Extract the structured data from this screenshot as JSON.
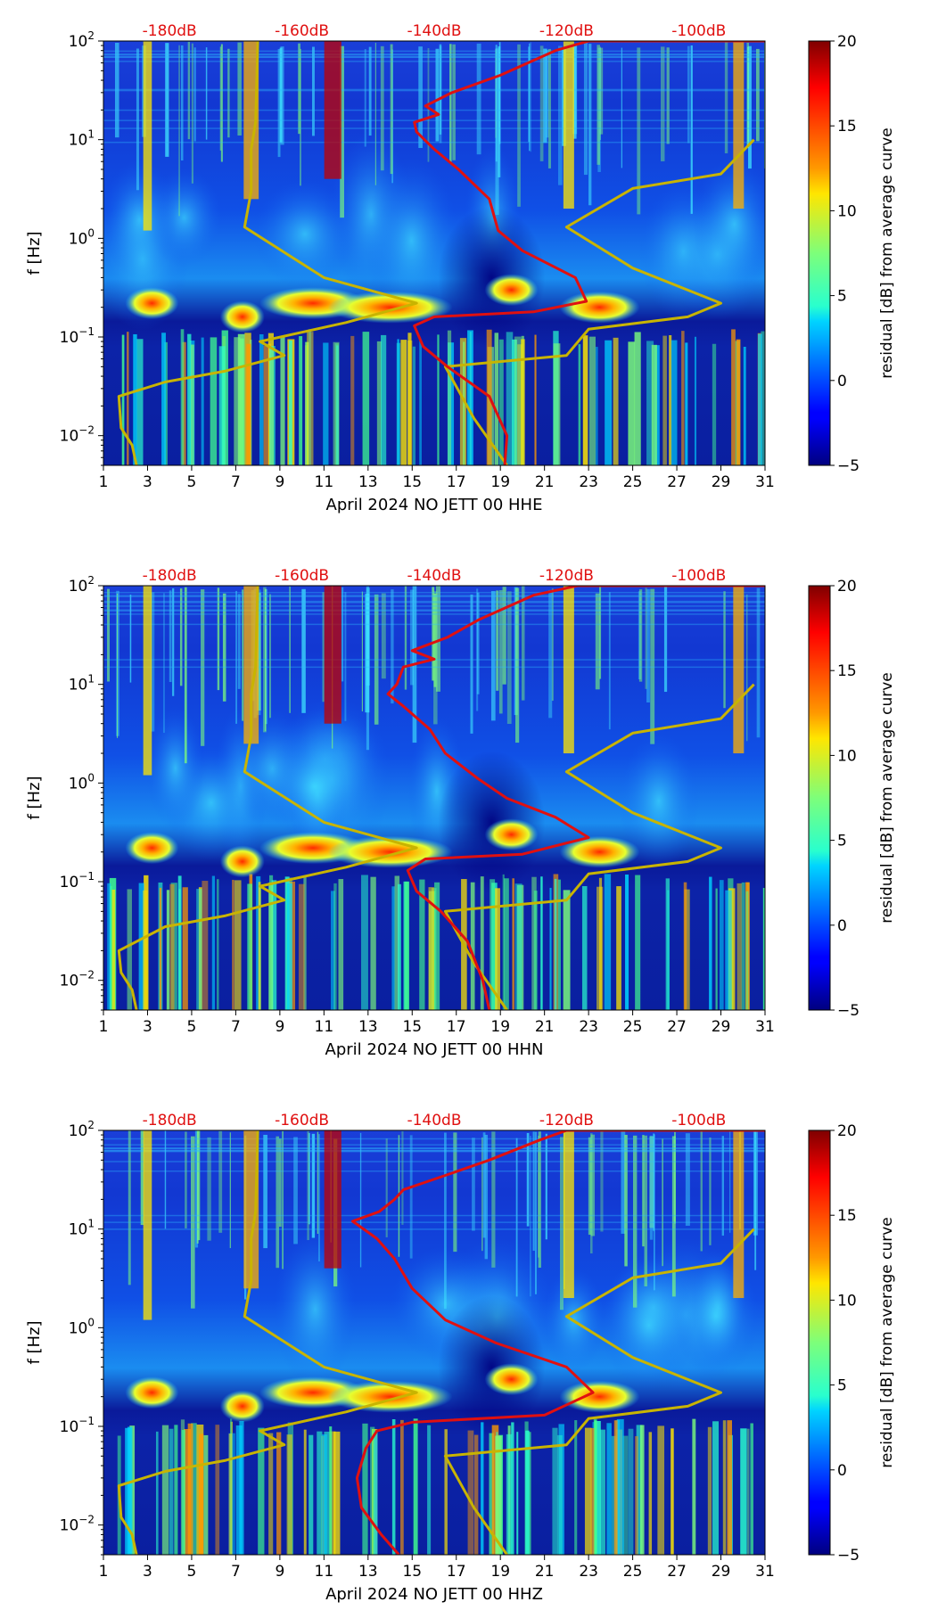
{
  "chart_data": [
    {
      "type": "heatmap",
      "title": "",
      "xlabel": "April 2024 NO JETT 00 HHE",
      "ylabel": "f [Hz]",
      "x_ticks": [
        "1",
        "3",
        "5",
        "7",
        "9",
        "11",
        "13",
        "15",
        "17",
        "19",
        "21",
        "23",
        "25",
        "27",
        "29",
        "31"
      ],
      "xlim": [
        1,
        31
      ],
      "y_ticks": [
        {
          "base": "10",
          "exp": "2"
        },
        {
          "base": "10",
          "exp": "1"
        },
        {
          "base": "10",
          "exp": "0"
        },
        {
          "base": "10",
          "exp": "−1"
        },
        {
          "base": "10",
          "exp": "−2"
        }
      ],
      "ylim_hz": [
        0.005,
        100
      ],
      "top_axis_labels": [
        "-180dB",
        "-160dB",
        "-140dB",
        "-120dB",
        "-100dB"
      ],
      "colorbar": {
        "label": "residual [dB] from average curve",
        "ticks": [
          "20",
          "15",
          "10",
          "5",
          "0",
          "−5"
        ],
        "range": [
          -5,
          20
        ]
      },
      "gold_curves": [
        [
          [
            2.5,
            0.005
          ],
          [
            2.3,
            0.008
          ],
          [
            1.8,
            0.012
          ],
          [
            1.7,
            0.025
          ],
          [
            3.8,
            0.035
          ],
          [
            6.5,
            0.045
          ],
          [
            9.2,
            0.065
          ],
          [
            8.1,
            0.09
          ],
          [
            12,
            0.14
          ],
          [
            15.2,
            0.22
          ],
          [
            11,
            0.4
          ],
          [
            7.4,
            1.3
          ],
          [
            7.7,
            3
          ],
          [
            7.7,
            8
          ],
          [
            7.9,
            15
          ],
          [
            8.0,
            100
          ]
        ],
        [
          [
            19.3,
            0.005
          ],
          [
            17.8,
            0.015
          ],
          [
            16.5,
            0.05
          ],
          [
            22,
            0.065
          ],
          [
            23,
            0.12
          ],
          [
            27.5,
            0.16
          ],
          [
            29,
            0.22
          ],
          [
            25,
            0.5
          ],
          [
            22,
            1.3
          ],
          [
            25,
            3.2
          ],
          [
            29,
            4.5
          ],
          [
            30.5,
            10
          ]
        ]
      ],
      "red_curve": [
        [
          19.2,
          0.005
        ],
        [
          19.3,
          0.01
        ],
        [
          18.5,
          0.025
        ],
        [
          16.6,
          0.05
        ],
        [
          15.5,
          0.08
        ],
        [
          15.1,
          0.13
        ],
        [
          16,
          0.16
        ],
        [
          20.5,
          0.18
        ],
        [
          22.9,
          0.23
        ],
        [
          22.4,
          0.4
        ],
        [
          20,
          0.75
        ],
        [
          18.9,
          1.2
        ],
        [
          18.5,
          2.5
        ],
        [
          17.1,
          5
        ],
        [
          16,
          8
        ],
        [
          15.2,
          12
        ],
        [
          15.1,
          15
        ],
        [
          16.2,
          18
        ],
        [
          15.6,
          22
        ],
        [
          16.8,
          30
        ],
        [
          19,
          45
        ],
        [
          21.5,
          80
        ],
        [
          23,
          100
        ],
        [
          31,
          100
        ]
      ]
    },
    {
      "type": "heatmap",
      "title": "",
      "xlabel": "April 2024 NO JETT 00 HHN",
      "ylabel": "f [Hz]",
      "x_ticks": [
        "1",
        "3",
        "5",
        "7",
        "9",
        "11",
        "13",
        "15",
        "17",
        "19",
        "21",
        "23",
        "25",
        "27",
        "29",
        "31"
      ],
      "xlim": [
        1,
        31
      ],
      "y_ticks": [
        {
          "base": "10",
          "exp": "2"
        },
        {
          "base": "10",
          "exp": "1"
        },
        {
          "base": "10",
          "exp": "0"
        },
        {
          "base": "10",
          "exp": "−1"
        },
        {
          "base": "10",
          "exp": "−2"
        }
      ],
      "ylim_hz": [
        0.005,
        100
      ],
      "top_axis_labels": [
        "-180dB",
        "-160dB",
        "-140dB",
        "-120dB",
        "-100dB"
      ],
      "colorbar": {
        "label": "residual [dB] from average curve",
        "ticks": [
          "20",
          "15",
          "10",
          "5",
          "0",
          "−5"
        ],
        "range": [
          -5,
          20
        ]
      },
      "gold_curves": [
        [
          [
            2.5,
            0.005
          ],
          [
            2.3,
            0.008
          ],
          [
            1.8,
            0.012
          ],
          [
            1.7,
            0.02
          ],
          [
            3.8,
            0.035
          ],
          [
            6.5,
            0.045
          ],
          [
            9.2,
            0.065
          ],
          [
            8.1,
            0.09
          ],
          [
            12,
            0.14
          ],
          [
            15.2,
            0.22
          ],
          [
            11,
            0.4
          ],
          [
            7.4,
            1.3
          ],
          [
            7.7,
            3
          ],
          [
            7.7,
            8
          ],
          [
            7.9,
            15
          ],
          [
            8.0,
            100
          ]
        ],
        [
          [
            19.3,
            0.005
          ],
          [
            17.8,
            0.015
          ],
          [
            16.5,
            0.05
          ],
          [
            22,
            0.065
          ],
          [
            23,
            0.12
          ],
          [
            27.5,
            0.16
          ],
          [
            29,
            0.22
          ],
          [
            25,
            0.5
          ],
          [
            22,
            1.3
          ],
          [
            25,
            3.2
          ],
          [
            29,
            4.5
          ],
          [
            30.5,
            10
          ]
        ]
      ],
      "red_curve": [
        [
          18.5,
          0.005
        ],
        [
          18.2,
          0.01
        ],
        [
          17.5,
          0.025
        ],
        [
          16.3,
          0.05
        ],
        [
          15.2,
          0.08
        ],
        [
          14.8,
          0.13
        ],
        [
          15.6,
          0.17
        ],
        [
          20,
          0.19
        ],
        [
          23,
          0.28
        ],
        [
          21.5,
          0.45
        ],
        [
          19.3,
          0.7
        ],
        [
          18,
          1.1
        ],
        [
          16.5,
          2
        ],
        [
          15.8,
          3.5
        ],
        [
          14.6,
          6
        ],
        [
          13.9,
          8
        ],
        [
          14.3,
          10
        ],
        [
          14.6,
          15
        ],
        [
          16,
          18
        ],
        [
          15,
          22
        ],
        [
          16.6,
          30
        ],
        [
          18,
          45
        ],
        [
          20.5,
          80
        ],
        [
          22.5,
          100
        ],
        [
          31,
          100
        ]
      ]
    },
    {
      "type": "heatmap",
      "title": "",
      "xlabel": "April 2024 NO JETT 00 HHZ",
      "ylabel": "f [Hz]",
      "x_ticks": [
        "1",
        "3",
        "5",
        "7",
        "9",
        "11",
        "13",
        "15",
        "17",
        "19",
        "21",
        "23",
        "25",
        "27",
        "29",
        "31"
      ],
      "xlim": [
        1,
        31
      ],
      "y_ticks": [
        {
          "base": "10",
          "exp": "2"
        },
        {
          "base": "10",
          "exp": "1"
        },
        {
          "base": "10",
          "exp": "0"
        },
        {
          "base": "10",
          "exp": "−1"
        },
        {
          "base": "10",
          "exp": "−2"
        }
      ],
      "ylim_hz": [
        0.005,
        100
      ],
      "top_axis_labels": [
        "-180dB",
        "-160dB",
        "-140dB",
        "-120dB",
        "-100dB"
      ],
      "colorbar": {
        "label": "residual [dB] from average curve",
        "ticks": [
          "20",
          "15",
          "10",
          "5",
          "0",
          "−5"
        ],
        "range": [
          -5,
          20
        ]
      },
      "gold_curves": [
        [
          [
            2.5,
            0.005
          ],
          [
            2.3,
            0.008
          ],
          [
            1.8,
            0.012
          ],
          [
            1.7,
            0.025
          ],
          [
            3.8,
            0.035
          ],
          [
            6.5,
            0.045
          ],
          [
            9.2,
            0.065
          ],
          [
            8.1,
            0.09
          ],
          [
            12,
            0.14
          ],
          [
            15.2,
            0.22
          ],
          [
            11,
            0.4
          ],
          [
            7.4,
            1.3
          ],
          [
            7.7,
            3
          ],
          [
            7.7,
            8
          ],
          [
            7.9,
            15
          ],
          [
            8.0,
            100
          ]
        ],
        [
          [
            19.3,
            0.005
          ],
          [
            17.8,
            0.015
          ],
          [
            16.5,
            0.05
          ],
          [
            22,
            0.065
          ],
          [
            23,
            0.12
          ],
          [
            27.5,
            0.16
          ],
          [
            29,
            0.22
          ],
          [
            25,
            0.5
          ],
          [
            22,
            1.3
          ],
          [
            25,
            3.2
          ],
          [
            29,
            4.5
          ],
          [
            30.5,
            10
          ]
        ]
      ],
      "red_curve": [
        [
          14.4,
          0.005
        ],
        [
          13.6,
          0.008
        ],
        [
          12.7,
          0.015
        ],
        [
          12.5,
          0.03
        ],
        [
          12.9,
          0.06
        ],
        [
          13.4,
          0.09
        ],
        [
          15,
          0.11
        ],
        [
          21,
          0.13
        ],
        [
          23.2,
          0.22
        ],
        [
          22,
          0.4
        ],
        [
          18.8,
          0.7
        ],
        [
          16.5,
          1.2
        ],
        [
          15,
          2.5
        ],
        [
          14.2,
          5
        ],
        [
          13.4,
          8
        ],
        [
          12.3,
          12
        ],
        [
          13.5,
          15
        ],
        [
          14.2,
          20
        ],
        [
          14.6,
          25
        ],
        [
          16.5,
          35
        ],
        [
          18.5,
          50
        ],
        [
          20.8,
          80
        ],
        [
          22,
          100
        ],
        [
          31,
          100
        ]
      ]
    }
  ]
}
